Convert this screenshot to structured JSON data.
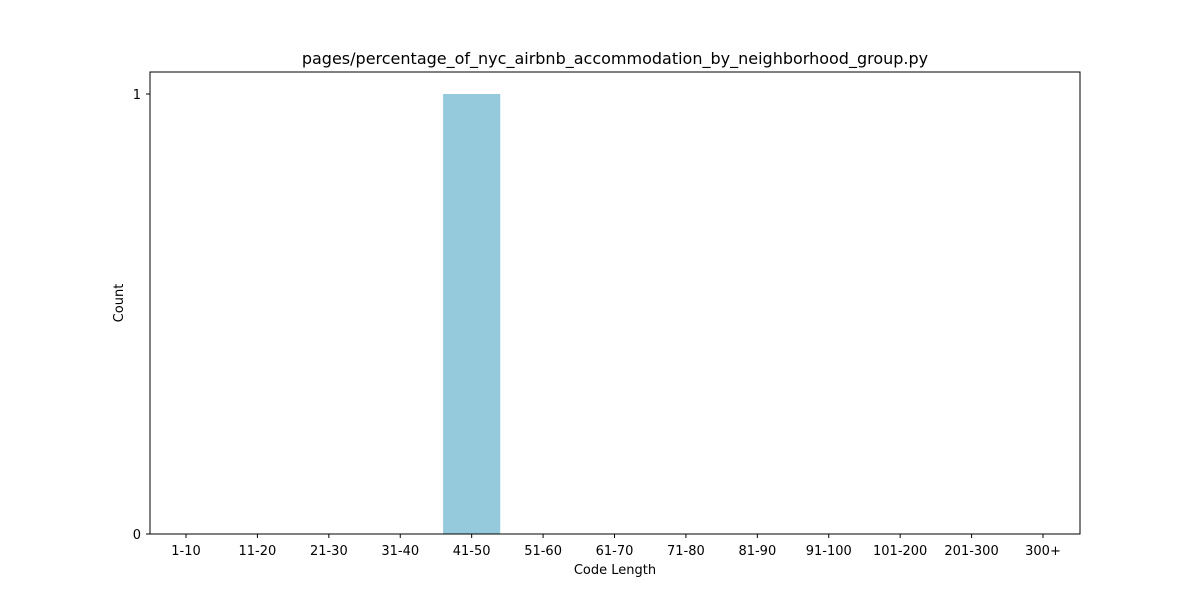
{
  "chart_data": {
    "type": "bar",
    "title": "pages/percentage_of_nyc_airbnb_accommodation_by_neighborhood_group.py",
    "xlabel": "Code Length",
    "ylabel": "Count",
    "categories": [
      "1-10",
      "11-20",
      "21-30",
      "31-40",
      "41-50",
      "51-60",
      "61-70",
      "71-80",
      "81-90",
      "91-100",
      "101-200",
      "201-300",
      "300+"
    ],
    "values": [
      0,
      0,
      0,
      0,
      1,
      0,
      0,
      0,
      0,
      0,
      0,
      0,
      0
    ],
    "yticks": [
      "0",
      "1"
    ],
    "ylim": [
      0,
      1.05
    ],
    "grid": false,
    "bar_color": "#95c9dc"
  }
}
